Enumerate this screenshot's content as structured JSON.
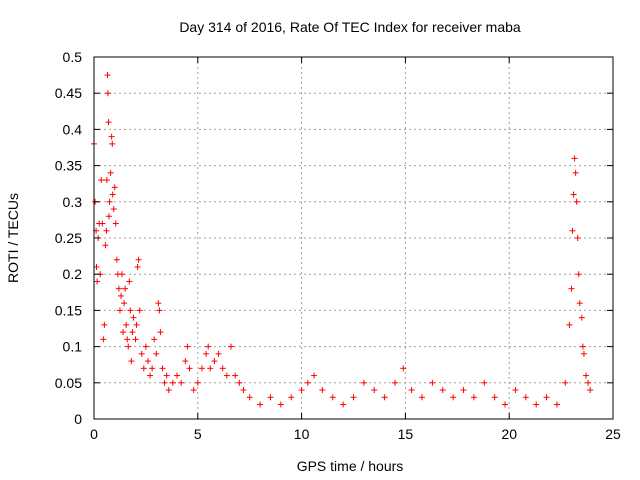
{
  "chart_data": {
    "type": "scatter",
    "title": "Day 314 of 2016, Rate Of TEC Index for receiver maba",
    "xlabel": "GPS time / hours",
    "ylabel": "ROTI / TECUs",
    "xlim": [
      0,
      25
    ],
    "ylim": [
      0,
      0.5
    ],
    "x_ticks": [
      0,
      5,
      10,
      15,
      20,
      25
    ],
    "x_tick_labels": [
      "0",
      "5",
      "10",
      "15",
      "20",
      "25"
    ],
    "y_ticks": [
      0,
      0.05,
      0.1,
      0.15,
      0.2,
      0.25,
      0.3,
      0.35,
      0.4,
      0.45,
      0.5
    ],
    "y_tick_labels": [
      "0",
      "0.05",
      "0.1",
      "0.15",
      "0.2",
      "0.25",
      "0.3",
      "0.35",
      "0.4",
      "0.45",
      "0.5"
    ],
    "grid": true,
    "marker": "+",
    "color": "#ff0000",
    "series": [
      {
        "name": "ROTI",
        "points": [
          [
            0.0,
            0.38
          ],
          [
            0.05,
            0.3
          ],
          [
            0.1,
            0.26
          ],
          [
            0.12,
            0.21
          ],
          [
            0.15,
            0.19
          ],
          [
            0.2,
            0.25
          ],
          [
            0.25,
            0.27
          ],
          [
            0.3,
            0.2
          ],
          [
            0.35,
            0.33
          ],
          [
            0.4,
            0.27
          ],
          [
            0.45,
            0.11
          ],
          [
            0.5,
            0.13
          ],
          [
            0.55,
            0.24
          ],
          [
            0.6,
            0.26
          ],
          [
            0.62,
            0.33
          ],
          [
            0.65,
            0.475
          ],
          [
            0.67,
            0.45
          ],
          [
            0.7,
            0.41
          ],
          [
            0.72,
            0.28
          ],
          [
            0.75,
            0.3
          ],
          [
            0.8,
            0.34
          ],
          [
            0.85,
            0.39
          ],
          [
            0.88,
            0.38
          ],
          [
            0.9,
            0.31
          ],
          [
            0.95,
            0.29
          ],
          [
            1.0,
            0.32
          ],
          [
            1.05,
            0.27
          ],
          [
            1.1,
            0.22
          ],
          [
            1.15,
            0.2
          ],
          [
            1.2,
            0.18
          ],
          [
            1.25,
            0.15
          ],
          [
            1.3,
            0.17
          ],
          [
            1.35,
            0.2
          ],
          [
            1.4,
            0.12
          ],
          [
            1.45,
            0.16
          ],
          [
            1.5,
            0.18
          ],
          [
            1.55,
            0.13
          ],
          [
            1.6,
            0.11
          ],
          [
            1.65,
            0.1
          ],
          [
            1.7,
            0.19
          ],
          [
            1.75,
            0.15
          ],
          [
            1.8,
            0.08
          ],
          [
            1.85,
            0.12
          ],
          [
            1.9,
            0.14
          ],
          [
            2.0,
            0.11
          ],
          [
            2.05,
            0.13
          ],
          [
            2.1,
            0.21
          ],
          [
            2.15,
            0.22
          ],
          [
            2.2,
            0.15
          ],
          [
            2.3,
            0.09
          ],
          [
            2.4,
            0.07
          ],
          [
            2.5,
            0.1
          ],
          [
            2.6,
            0.08
          ],
          [
            2.7,
            0.06
          ],
          [
            2.8,
            0.07
          ],
          [
            2.9,
            0.11
          ],
          [
            3.0,
            0.09
          ],
          [
            3.1,
            0.16
          ],
          [
            3.15,
            0.15
          ],
          [
            3.2,
            0.12
          ],
          [
            3.3,
            0.07
          ],
          [
            3.4,
            0.05
          ],
          [
            3.5,
            0.06
          ],
          [
            3.6,
            0.04
          ],
          [
            3.8,
            0.05
          ],
          [
            4.0,
            0.06
          ],
          [
            4.2,
            0.05
          ],
          [
            4.4,
            0.08
          ],
          [
            4.5,
            0.1
          ],
          [
            4.6,
            0.07
          ],
          [
            4.8,
            0.04
          ],
          [
            5.0,
            0.05
          ],
          [
            5.2,
            0.07
          ],
          [
            5.4,
            0.09
          ],
          [
            5.5,
            0.1
          ],
          [
            5.6,
            0.07
          ],
          [
            5.8,
            0.08
          ],
          [
            6.0,
            0.09
          ],
          [
            6.2,
            0.07
          ],
          [
            6.4,
            0.06
          ],
          [
            6.6,
            0.1
          ],
          [
            6.8,
            0.06
          ],
          [
            7.0,
            0.05
          ],
          [
            7.2,
            0.04
          ],
          [
            7.5,
            0.03
          ],
          [
            8.0,
            0.02
          ],
          [
            8.5,
            0.03
          ],
          [
            9.0,
            0.02
          ],
          [
            9.5,
            0.03
          ],
          [
            10.0,
            0.04
          ],
          [
            10.3,
            0.05
          ],
          [
            10.6,
            0.06
          ],
          [
            11.0,
            0.04
          ],
          [
            11.5,
            0.03
          ],
          [
            12.0,
            0.02
          ],
          [
            12.5,
            0.03
          ],
          [
            13.0,
            0.05
          ],
          [
            13.5,
            0.04
          ],
          [
            14.0,
            0.03
          ],
          [
            14.5,
            0.05
          ],
          [
            14.9,
            0.07
          ],
          [
            15.3,
            0.04
          ],
          [
            15.8,
            0.03
          ],
          [
            16.3,
            0.05
          ],
          [
            16.8,
            0.04
          ],
          [
            17.3,
            0.03
          ],
          [
            17.8,
            0.04
          ],
          [
            18.3,
            0.03
          ],
          [
            18.8,
            0.05
          ],
          [
            19.3,
            0.03
          ],
          [
            19.8,
            0.02
          ],
          [
            20.3,
            0.04
          ],
          [
            20.8,
            0.03
          ],
          [
            21.3,
            0.02
          ],
          [
            21.8,
            0.03
          ],
          [
            22.3,
            0.02
          ],
          [
            22.7,
            0.05
          ],
          [
            22.9,
            0.13
          ],
          [
            23.0,
            0.18
          ],
          [
            23.05,
            0.26
          ],
          [
            23.1,
            0.31
          ],
          [
            23.15,
            0.36
          ],
          [
            23.2,
            0.34
          ],
          [
            23.25,
            0.3
          ],
          [
            23.3,
            0.25
          ],
          [
            23.35,
            0.2
          ],
          [
            23.4,
            0.16
          ],
          [
            23.5,
            0.14
          ],
          [
            23.55,
            0.1
          ],
          [
            23.6,
            0.09
          ],
          [
            23.7,
            0.06
          ],
          [
            23.8,
            0.05
          ],
          [
            23.9,
            0.04
          ]
        ]
      }
    ]
  }
}
